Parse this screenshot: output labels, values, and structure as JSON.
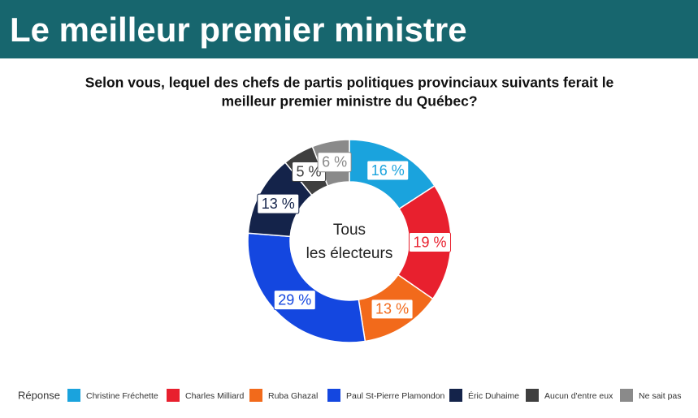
{
  "chart_data": {
    "type": "pie",
    "title": "Le meilleur premier ministre",
    "subtitle": [
      "Selon vous, lequel des chefs de partis politiques provinciaux suivants ferait le",
      "meilleur premier ministre du Québec?"
    ],
    "center_label": [
      "Tous",
      "les électeurs"
    ],
    "legend_title": "Réponse",
    "categories": [
      "Christine Fréchette",
      "Charles Milliard",
      "Ruba Ghazal",
      "Paul St-Pierre Plamondon",
      "Éric Duhaime",
      "Aucun d'entre eux",
      "Ne sait pas"
    ],
    "values": [
      16,
      19,
      13,
      29,
      13,
      5,
      6
    ],
    "value_labels": [
      "16 %",
      "19 %",
      "13 %",
      "29 %",
      "13 %",
      "5 %",
      "6 %"
    ],
    "colors": [
      "#1aa3dd",
      "#e8202e",
      "#f26a1b",
      "#1447e0",
      "#14234a",
      "#3f3f3f",
      "#8a8a8a"
    ],
    "legend": "bottom"
  }
}
